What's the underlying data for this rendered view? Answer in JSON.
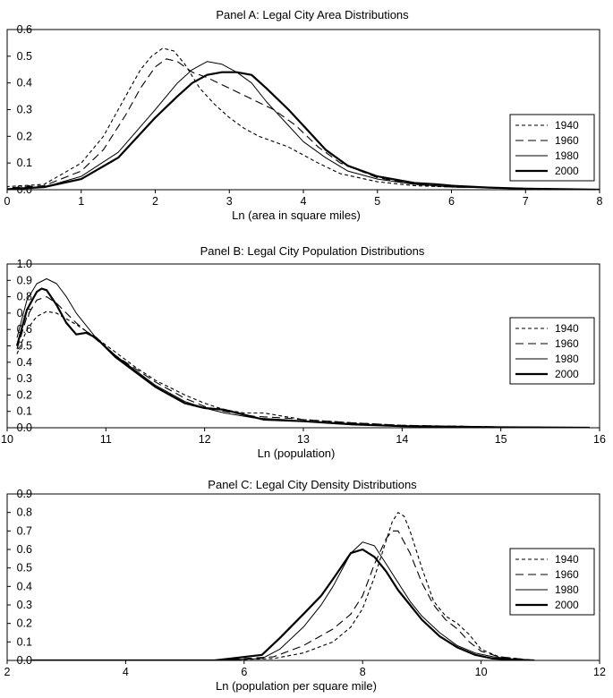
{
  "chart_data": [
    {
      "type": "line",
      "title": "Panel A: Legal City Area Distributions",
      "xlabel": "Ln (area in square miles)",
      "ylabel": "",
      "xlim": [
        0,
        8
      ],
      "ylim": [
        0,
        0.6
      ],
      "xticks": [
        "0",
        "1",
        "2",
        "3",
        "4",
        "5",
        "6",
        "7",
        "8"
      ],
      "yticks": [
        "0.0",
        "0.1",
        "0.2",
        "0.3",
        "0.4",
        "0.5",
        "0.6"
      ],
      "legend_position": "right",
      "series": [
        {
          "name": "1940",
          "style": "short-dash",
          "x": [
            -0.1,
            0.5,
            1.0,
            1.3,
            1.6,
            1.8,
            1.95,
            2.1,
            2.25,
            2.4,
            2.6,
            2.8,
            3.0,
            3.2,
            3.4,
            3.6,
            3.8,
            4.0,
            4.2,
            4.5,
            5.0,
            5.5,
            6.0,
            7.0,
            8.0
          ],
          "y": [
            0.01,
            0.02,
            0.1,
            0.2,
            0.35,
            0.45,
            0.5,
            0.53,
            0.52,
            0.47,
            0.38,
            0.32,
            0.27,
            0.23,
            0.2,
            0.18,
            0.16,
            0.13,
            0.1,
            0.06,
            0.03,
            0.015,
            0.01,
            0.005,
            0.0
          ]
        },
        {
          "name": "1960",
          "style": "long-dash",
          "x": [
            -0.1,
            0.5,
            1.0,
            1.3,
            1.6,
            1.8,
            2.0,
            2.15,
            2.3,
            2.5,
            2.7,
            3.0,
            3.3,
            3.6,
            3.9,
            4.2,
            4.5,
            5.0,
            5.5,
            6.0,
            7.0,
            8.0
          ],
          "y": [
            0.005,
            0.015,
            0.07,
            0.15,
            0.28,
            0.38,
            0.46,
            0.49,
            0.48,
            0.44,
            0.42,
            0.38,
            0.34,
            0.3,
            0.24,
            0.16,
            0.1,
            0.045,
            0.02,
            0.01,
            0.005,
            0.0
          ]
        },
        {
          "name": "1980",
          "style": "thin",
          "x": [
            -0.1,
            0.5,
            1.0,
            1.5,
            2.0,
            2.3,
            2.5,
            2.7,
            2.9,
            3.1,
            3.3,
            3.5,
            3.8,
            4.0,
            4.3,
            4.6,
            5.0,
            5.5,
            6.0,
            7.0,
            8.0
          ],
          "y": [
            0.0,
            0.01,
            0.05,
            0.14,
            0.3,
            0.4,
            0.45,
            0.48,
            0.47,
            0.44,
            0.4,
            0.33,
            0.24,
            0.18,
            0.12,
            0.07,
            0.04,
            0.02,
            0.01,
            0.005,
            0.0
          ]
        },
        {
          "name": "2000",
          "style": "thick",
          "x": [
            -0.1,
            0.5,
            1.0,
            1.5,
            2.0,
            2.3,
            2.5,
            2.7,
            2.9,
            3.1,
            3.3,
            3.5,
            3.8,
            4.0,
            4.3,
            4.6,
            5.0,
            5.5,
            5.8,
            6.0,
            6.5,
            7.0,
            8.0
          ],
          "y": [
            0.0,
            0.01,
            0.04,
            0.12,
            0.27,
            0.35,
            0.4,
            0.43,
            0.44,
            0.44,
            0.43,
            0.38,
            0.3,
            0.24,
            0.15,
            0.09,
            0.05,
            0.025,
            0.02,
            0.015,
            0.008,
            0.004,
            0.0
          ]
        }
      ]
    },
    {
      "type": "line",
      "title": "Panel B: Legal City Population Distributions",
      "xlabel": "Ln (population)",
      "ylabel": "",
      "xlim": [
        10,
        16
      ],
      "ylim": [
        0,
        1.0
      ],
      "xticks": [
        "10",
        "11",
        "12",
        "13",
        "14",
        "15",
        "16"
      ],
      "yticks": [
        "0.0",
        "0.1",
        "0.2",
        "0.3",
        "0.4",
        "0.5",
        "0.6",
        "0.7",
        "0.8",
        "0.9",
        "1.0"
      ],
      "legend_position": "right",
      "series": [
        {
          "name": "1940",
          "style": "short-dash",
          "x": [
            10.1,
            10.2,
            10.3,
            10.4,
            10.5,
            10.7,
            10.9,
            11.1,
            11.3,
            11.5,
            11.8,
            12.0,
            12.2,
            12.4,
            12.6,
            12.8,
            13.0,
            13.5,
            14.0,
            15.0,
            15.9
          ],
          "y": [
            0.45,
            0.6,
            0.68,
            0.71,
            0.7,
            0.63,
            0.55,
            0.46,
            0.37,
            0.29,
            0.2,
            0.15,
            0.11,
            0.09,
            0.09,
            0.07,
            0.05,
            0.03,
            0.015,
            0.005,
            0.0
          ]
        },
        {
          "name": "1960",
          "style": "long-dash",
          "x": [
            10.1,
            10.2,
            10.3,
            10.4,
            10.5,
            10.7,
            10.9,
            11.1,
            11.3,
            11.5,
            11.8,
            12.0,
            12.2,
            12.5,
            12.8,
            13.0,
            13.5,
            14.0,
            15.0,
            15.9
          ],
          "y": [
            0.48,
            0.68,
            0.78,
            0.8,
            0.76,
            0.64,
            0.54,
            0.44,
            0.36,
            0.28,
            0.18,
            0.13,
            0.1,
            0.07,
            0.06,
            0.05,
            0.03,
            0.015,
            0.005,
            0.0
          ]
        },
        {
          "name": "1980",
          "style": "thin",
          "x": [
            10.1,
            10.2,
            10.3,
            10.4,
            10.5,
            10.6,
            10.7,
            10.9,
            11.1,
            11.3,
            11.5,
            11.8,
            12.0,
            12.2,
            12.5,
            12.8,
            13.0,
            13.5,
            14.0,
            15.0,
            15.9
          ],
          "y": [
            0.55,
            0.78,
            0.88,
            0.91,
            0.88,
            0.8,
            0.7,
            0.55,
            0.44,
            0.35,
            0.26,
            0.16,
            0.12,
            0.09,
            0.06,
            0.05,
            0.04,
            0.025,
            0.01,
            0.004,
            0.0
          ]
        },
        {
          "name": "2000",
          "style": "thick",
          "x": [
            10.1,
            10.2,
            10.3,
            10.35,
            10.4,
            10.5,
            10.6,
            10.7,
            10.8,
            10.9,
            11.0,
            11.1,
            11.3,
            11.5,
            11.8,
            12.0,
            12.2,
            12.4,
            12.6,
            13.0,
            13.5,
            14.0,
            15.0,
            15.9
          ],
          "y": [
            0.5,
            0.72,
            0.83,
            0.85,
            0.84,
            0.75,
            0.64,
            0.57,
            0.58,
            0.55,
            0.49,
            0.43,
            0.34,
            0.25,
            0.15,
            0.12,
            0.11,
            0.08,
            0.05,
            0.04,
            0.02,
            0.01,
            0.003,
            0.0
          ]
        }
      ]
    },
    {
      "type": "line",
      "title": "Panel C: Legal City Density Distributions",
      "xlabel": "Ln (population per square mile)",
      "ylabel": "",
      "xlim": [
        2,
        12
      ],
      "ylim": [
        0,
        0.9
      ],
      "xticks": [
        "2",
        "4",
        "6",
        "8",
        "10",
        "12"
      ],
      "yticks": [
        "0.0",
        "0.1",
        "0.2",
        "0.3",
        "0.4",
        "0.5",
        "0.6",
        "0.7",
        "0.8",
        "0.9"
      ],
      "legend_position": "right",
      "series": [
        {
          "name": "1940",
          "style": "short-dash",
          "x": [
            2.4,
            4.0,
            5.5,
            6.5,
            7.0,
            7.5,
            7.8,
            8.0,
            8.2,
            8.4,
            8.5,
            8.6,
            8.7,
            8.8,
            9.0,
            9.2,
            9.4,
            9.6,
            9.8,
            10.0,
            10.3,
            10.6,
            10.9
          ],
          "y": [
            0.0,
            0.0,
            0.0,
            0.01,
            0.04,
            0.1,
            0.18,
            0.28,
            0.45,
            0.65,
            0.75,
            0.8,
            0.78,
            0.7,
            0.5,
            0.32,
            0.24,
            0.2,
            0.14,
            0.06,
            0.02,
            0.01,
            0.0
          ]
        },
        {
          "name": "1960",
          "style": "long-dash",
          "x": [
            2.4,
            4.0,
            5.5,
            6.5,
            7.0,
            7.5,
            7.8,
            8.0,
            8.2,
            8.4,
            8.5,
            8.6,
            8.8,
            9.0,
            9.2,
            9.4,
            9.6,
            9.8,
            10.0,
            10.3,
            10.6,
            10.9
          ],
          "y": [
            0.0,
            0.0,
            0.0,
            0.02,
            0.08,
            0.17,
            0.25,
            0.35,
            0.52,
            0.66,
            0.7,
            0.7,
            0.58,
            0.42,
            0.3,
            0.22,
            0.17,
            0.1,
            0.05,
            0.02,
            0.01,
            0.0
          ]
        },
        {
          "name": "1980",
          "style": "thin",
          "x": [
            2.4,
            4.0,
            5.5,
            6.3,
            6.6,
            7.0,
            7.3,
            7.5,
            7.8,
            8.0,
            8.2,
            8.4,
            8.6,
            8.8,
            9.0,
            9.3,
            9.6,
            9.9,
            10.2,
            10.6,
            10.9
          ],
          "y": [
            0.0,
            0.0,
            0.0,
            0.01,
            0.06,
            0.18,
            0.3,
            0.4,
            0.58,
            0.64,
            0.62,
            0.52,
            0.42,
            0.32,
            0.24,
            0.15,
            0.08,
            0.04,
            0.02,
            0.005,
            0.0
          ]
        },
        {
          "name": "2000",
          "style": "thick",
          "x": [
            2.4,
            4.0,
            5.5,
            6.3,
            6.6,
            7.0,
            7.3,
            7.5,
            7.8,
            8.0,
            8.2,
            8.4,
            8.6,
            8.8,
            9.0,
            9.3,
            9.6,
            9.9,
            10.2,
            10.6,
            10.9
          ],
          "y": [
            0.0,
            0.0,
            0.0,
            0.03,
            0.12,
            0.25,
            0.35,
            0.44,
            0.58,
            0.6,
            0.56,
            0.48,
            0.38,
            0.3,
            0.22,
            0.13,
            0.07,
            0.03,
            0.01,
            0.004,
            0.0
          ]
        }
      ]
    }
  ],
  "colors": {
    "axis": "#000000",
    "line": "#000000",
    "background": "#ffffff"
  }
}
